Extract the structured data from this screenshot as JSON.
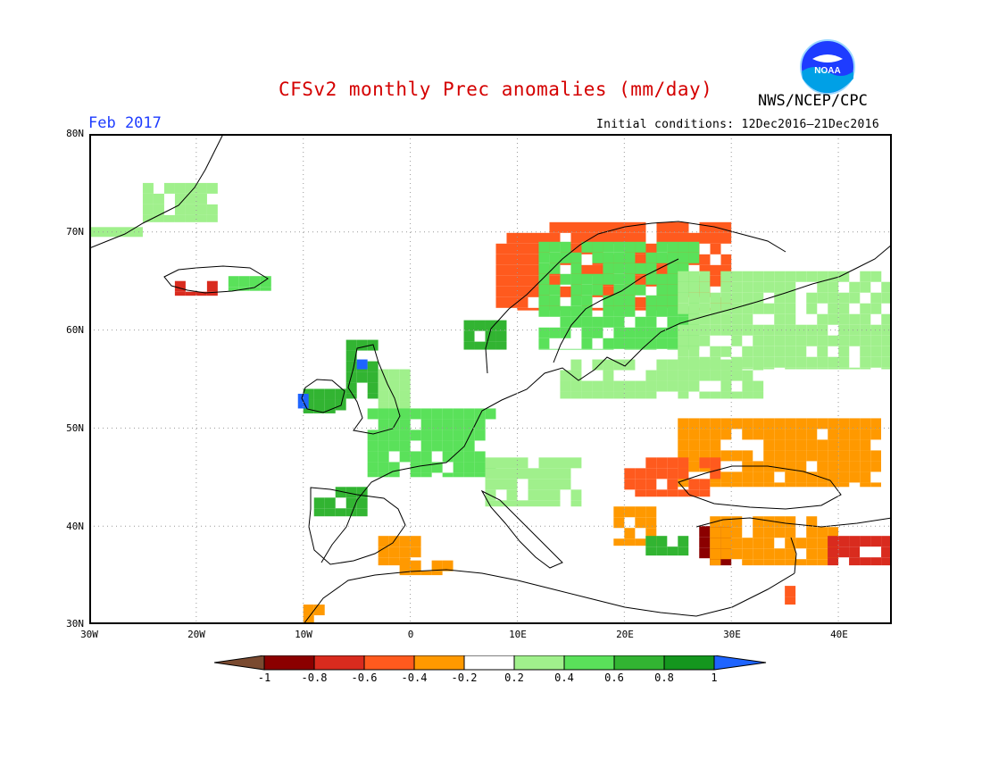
{
  "header": {
    "title": "CFSv2 monthly Prec anomalies (mm/day)",
    "agency": "NWS/NCEP/CPC",
    "logo_text": "NOAA",
    "period": "Feb 2017",
    "initial_conditions": "Initial conditions: 12Dec2016–21Dec2016"
  },
  "map": {
    "lon_range": [
      -30,
      45
    ],
    "lat_range": [
      30,
      80
    ],
    "lat_labels": [
      "80N",
      "70N",
      "60N",
      "50N",
      "40N",
      "30N"
    ],
    "lon_labels": [
      "30W",
      "20W",
      "10W",
      "0",
      "10E",
      "20E",
      "30E",
      "40E"
    ],
    "gridlines": "dotted",
    "anomaly_regions": [
      {
        "name": "greenland-east",
        "lon": [
          -25,
          -18
        ],
        "lat": [
          71,
          75
        ],
        "level": "0.2-0.4"
      },
      {
        "name": "greenland-south",
        "lon": [
          -30,
          -25
        ],
        "lat": [
          69.5,
          70.5
        ],
        "level": "0.2-0.4"
      },
      {
        "name": "iceland-west",
        "lon": [
          -22,
          -18
        ],
        "lat": [
          63.5,
          65
        ],
        "level": "-0.8--0.6"
      },
      {
        "name": "iceland-east",
        "lon": [
          -17,
          -13
        ],
        "lat": [
          64,
          65.5
        ],
        "level": "0.4-0.6"
      },
      {
        "name": "ireland",
        "lon": [
          -10,
          -6
        ],
        "lat": [
          51.5,
          54
        ],
        "level": "0.6-0.8"
      },
      {
        "name": "ireland-west-coast",
        "lon": [
          -10.5,
          -9.5
        ],
        "lat": [
          52,
          53.5
        ],
        "level": ">1"
      },
      {
        "name": "britain-west",
        "lon": [
          -6,
          -3
        ],
        "lat": [
          53,
          59
        ],
        "level": "0.6-0.8"
      },
      {
        "name": "scotland",
        "lon": [
          -5,
          -4
        ],
        "lat": [
          56,
          57
        ],
        "level": ">1"
      },
      {
        "name": "britain-east",
        "lon": [
          -3,
          0
        ],
        "lat": [
          51,
          56
        ],
        "level": "0.2-0.4"
      },
      {
        "name": "france-benelux",
        "lon": [
          -4,
          8
        ],
        "lat": [
          45,
          52
        ],
        "level": "0.4-0.6"
      },
      {
        "name": "alps-italy",
        "lon": [
          7,
          16
        ],
        "lat": [
          42,
          47
        ],
        "level": "0.2-0.4"
      },
      {
        "name": "iberia-northwest",
        "lon": [
          -9,
          -4
        ],
        "lat": [
          41,
          44
        ],
        "level": "0.6-0.8"
      },
      {
        "name": "iberia-southeast",
        "lon": [
          -3,
          1
        ],
        "lat": [
          36,
          39
        ],
        "level": "-0.4--0.2"
      },
      {
        "name": "north-africa",
        "lon": [
          -1,
          4
        ],
        "lat": [
          35,
          36.5
        ],
        "level": "-0.4--0.2"
      },
      {
        "name": "morocco",
        "lon": [
          -10,
          -8
        ],
        "lat": [
          30,
          32
        ],
        "level": "-0.4--0.2"
      },
      {
        "name": "norway-coast",
        "lon": [
          8,
          30
        ],
        "lat": [
          62,
          71
        ],
        "level": "-0.6--0.4"
      },
      {
        "name": "norway-south",
        "lon": [
          5,
          9
        ],
        "lat": [
          58,
          61
        ],
        "level": "0.6-0.8"
      },
      {
        "name": "scandinavia",
        "lon": [
          12,
          27
        ],
        "lat": [
          58,
          69
        ],
        "level": "0.4-0.6"
      },
      {
        "name": "finland-russia",
        "lon": [
          25,
          45
        ],
        "lat": [
          56,
          66
        ],
        "level": "0.2-0.4"
      },
      {
        "name": "baltic-poland",
        "lon": [
          14,
          33
        ],
        "lat": [
          53,
          57
        ],
        "level": "0.2-0.4"
      },
      {
        "name": "ukraine-black-sea",
        "lon": [
          25,
          44
        ],
        "lat": [
          44,
          51
        ],
        "level": "-0.4--0.2"
      },
      {
        "name": "romania",
        "lon": [
          20,
          29
        ],
        "lat": [
          43,
          47
        ],
        "level": "-0.6--0.4"
      },
      {
        "name": "balkans",
        "lon": [
          19,
          23
        ],
        "lat": [
          38,
          42
        ],
        "level": "-0.4--0.2"
      },
      {
        "name": "greece-aegean",
        "lon": [
          22,
          26
        ],
        "lat": [
          37,
          39
        ],
        "level": "0.6-0.8"
      },
      {
        "name": "turkey-west",
        "lon": [
          27,
          30
        ],
        "lat": [
          36,
          40
        ],
        "level": "-1--0.8"
      },
      {
        "name": "turkey",
        "lon": [
          28,
          40
        ],
        "lat": [
          36,
          41
        ],
        "level": "-0.4--0.2"
      },
      {
        "name": "turkey-east",
        "lon": [
          39,
          45
        ],
        "lat": [
          36,
          39
        ],
        "level": "-0.8--0.6"
      },
      {
        "name": "levant",
        "lon": [
          35,
          37
        ],
        "lat": [
          32,
          35
        ],
        "level": "-0.6--0.4"
      }
    ]
  },
  "colorbar": {
    "labels": [
      "-1",
      "-0.8",
      "-0.6",
      "-0.4",
      "-0.2",
      "0.2",
      "0.4",
      "0.6",
      "0.8",
      "1"
    ],
    "colors": [
      "#8b0000",
      "#d92b1e",
      "#ff5a1e",
      "#ff9900",
      "#ffffff",
      "#a0f08c",
      "#5ae15a",
      "#32b432",
      "#14961e"
    ],
    "under_color": "#7a4a30",
    "over_color": "#1e64ff"
  }
}
